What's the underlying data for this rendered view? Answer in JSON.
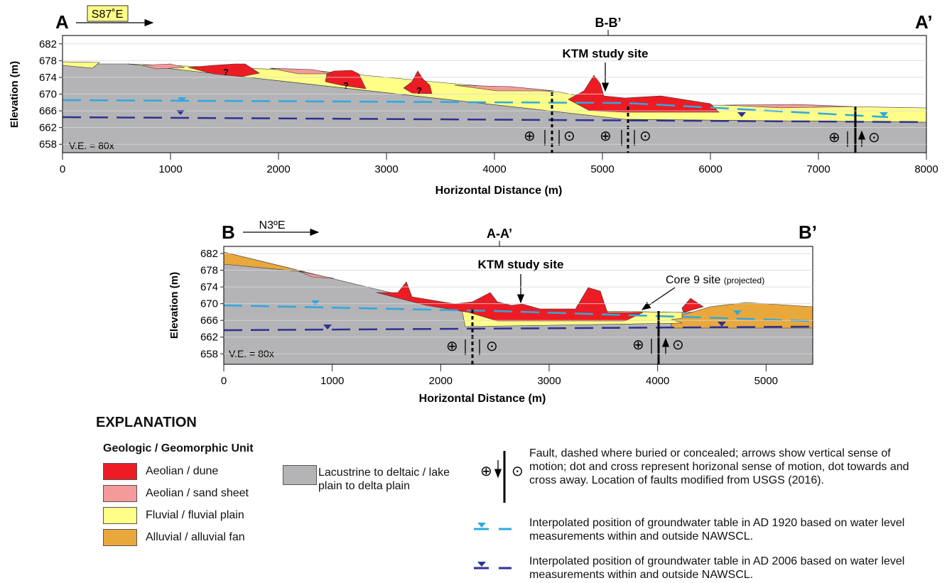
{
  "sections": [
    {
      "left_label": "A",
      "right_label": "A’",
      "direction": "S87˚E",
      "crossing": "B-B’",
      "site": "KTM study site",
      "site_note": null,
      "question_marks": [
        "?",
        "?",
        "?"
      ],
      "exaggeration": "V.E. = 80x",
      "ylabel": "Elevation (m)",
      "xlabel": "Horizontal Distance (m)",
      "xlim": [
        0,
        8000
      ],
      "ylim": [
        656,
        684
      ],
      "xticks": [
        0,
        1000,
        2000,
        3000,
        4000,
        5000,
        6000,
        7000,
        8000
      ],
      "yticks": [
        658,
        662,
        666,
        670,
        674,
        678,
        682
      ]
    },
    {
      "left_label": "B",
      "right_label": "B’",
      "direction": "N3ºE",
      "crossing": "A-A’",
      "site": "KTM study site",
      "site_note": {
        "text": "Core 9 site",
        "qualifier": "(projected)"
      },
      "question_marks": [],
      "exaggeration": "V.E. = 80x",
      "ylabel": "Elevation (m)",
      "xlabel": "Horizontal Distance (m)",
      "xlim": [
        0,
        5430
      ],
      "ylim": [
        655.5,
        683.7
      ],
      "xticks": [
        0,
        1000,
        2000,
        3000,
        4000,
        5000
      ],
      "yticks": [
        658,
        662,
        666,
        670,
        674,
        678,
        682
      ]
    }
  ],
  "explanation": {
    "title": "EXPLANATION",
    "units_heading": "Geologic / Geomorphic Unit",
    "units": [
      {
        "label": "Aeolian / dune",
        "color": "#ed1c24"
      },
      {
        "label": "Aeolian / sand sheet",
        "color": "#f49a9a"
      },
      {
        "label": "Fluvial / fluvial plain",
        "color": "#ffff88"
      },
      {
        "label": "Alluvial / alluvial fan",
        "color": "#e9a83c"
      },
      {
        "label": "Lacustrine to deltaic / lake plain to delta plain",
        "color": "#b4b4b6"
      }
    ],
    "symbols": [
      {
        "text": "Fault, dashed where buried or concealed; arrows show vertical sense of motion; dot and cross represent horizonal sense of motion, dot towards and cross away. Location of faults modified from USGS (2016)."
      },
      {
        "text": "Interpolated position of groundwater table in AD 1920 based on water level measurements within and outside NAWSCL.",
        "color": "#2fa8e0"
      },
      {
        "text": "Interpolated position of groundwater table in AD 2006 based on water level measurements within and outside NAWSCL.",
        "color": "#2e3192"
      }
    ]
  }
}
